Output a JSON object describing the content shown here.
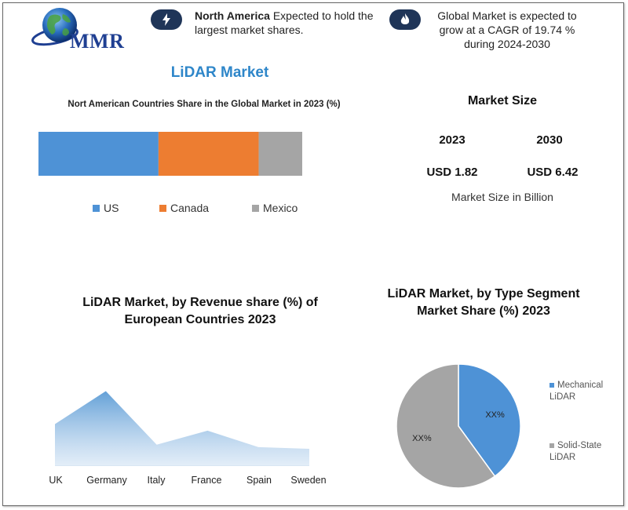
{
  "logo": {
    "text": "MMR"
  },
  "header": {
    "note1": {
      "bold": "North America",
      "text": " Expected to hold the largest market shares."
    },
    "note2": {
      "text": "Global Market is expected to grow at a CAGR of 19.74 % during 2024-2030"
    }
  },
  "main_title": "LiDAR Market",
  "colors": {
    "us": "#4e92d6",
    "canada": "#ed7d31",
    "mexico": "#a5a5a5",
    "accent": "#2e86c9",
    "icon_bg": "#1f3558"
  },
  "market_size": {
    "title": "Market Size",
    "year1": "2023",
    "year2": "2030",
    "value1": "USD 1.82",
    "value2": "USD 6.42",
    "note": "Market Size in Billion"
  },
  "chart_data": [
    {
      "type": "bar",
      "orientation": "horizontal-stacked",
      "title": "Nort American Countries Share in the Global Market in 2023  (%)",
      "series": [
        {
          "name": "US",
          "value": 45.5
        },
        {
          "name": "Canada",
          "value": 38.0
        },
        {
          "name": "Mexico",
          "value": 16.5
        }
      ],
      "legend_position": "bottom"
    },
    {
      "type": "area",
      "title": "LiDAR Market, by Revenue share (%) of European Countries 2023",
      "categories": [
        "UK",
        "Germany",
        "Italy",
        "France",
        "Spain",
        "Sweden"
      ],
      "values": [
        50,
        90,
        25,
        42,
        22,
        20
      ],
      "ylim": [
        0,
        100
      ],
      "grid": false
    },
    {
      "type": "pie",
      "title": "LiDAR Market, by Type Segment Market Share (%) 2023",
      "slices": [
        {
          "name": "Mechanical LiDAR",
          "value": 40,
          "label": "XX%",
          "color": "#4e92d6"
        },
        {
          "name": "Solid-State LiDAR",
          "value": 60,
          "label": "XX%",
          "color": "#a5a5a5"
        }
      ],
      "legend_position": "right"
    }
  ]
}
